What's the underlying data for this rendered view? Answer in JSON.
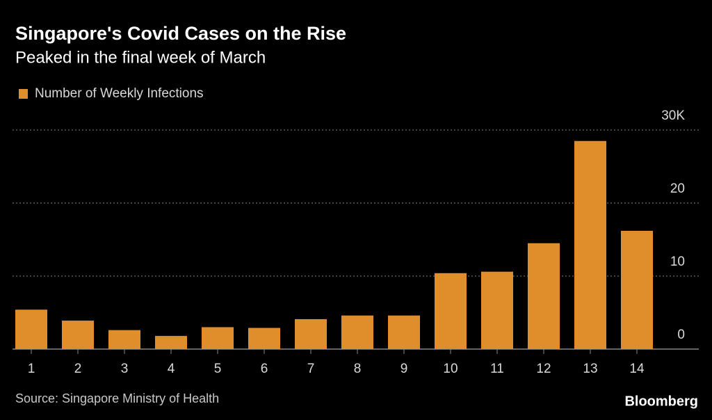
{
  "chart_data": {
    "type": "bar",
    "title": "Singapore's Covid Cases on the Rise",
    "subtitle": "Peaked in the final week of March",
    "source": "Source: Singapore Ministry of Health",
    "brand": "Bloomberg",
    "categories": [
      "1",
      "2",
      "3",
      "4",
      "5",
      "6",
      "7",
      "8",
      "9",
      "10",
      "11",
      "12",
      "13",
      "14"
    ],
    "series": [
      {
        "name": "Number of Weekly Infections",
        "color": "#e08e2b",
        "values": [
          5.4,
          3.9,
          2.6,
          1.8,
          3.0,
          2.9,
          4.1,
          4.6,
          4.6,
          10.4,
          10.6,
          14.5,
          28.5,
          16.2
        ]
      }
    ],
    "ylim": [
      0,
      30
    ],
    "yticks": [
      0,
      10,
      20,
      {
        "value": 30,
        "label": "30K"
      }
    ],
    "grid": true
  }
}
